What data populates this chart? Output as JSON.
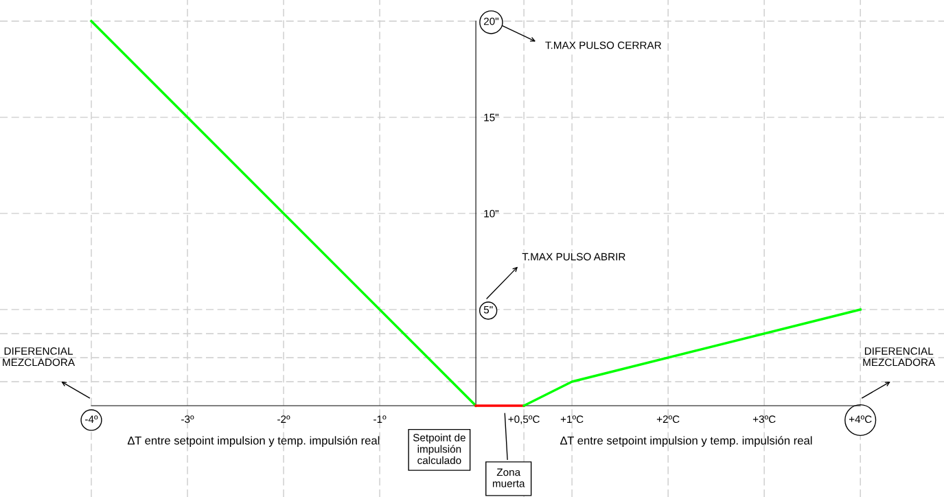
{
  "chart_data": {
    "type": "line",
    "xlabel": "∆T entre setpoint impulsion y temp. impulsión real",
    "series": [
      {
        "color": "#00ff00",
        "x": [
          -4,
          0
        ],
        "values": [
          20,
          0
        ]
      },
      {
        "color": "#ff0000",
        "x": [
          0,
          0.5
        ],
        "values": [
          0,
          0
        ]
      },
      {
        "color": "#00ff00",
        "x": [
          0.5,
          1,
          4
        ],
        "values": [
          0,
          1.25,
          5
        ]
      }
    ],
    "xlim": [
      -4.95,
      4.87
    ],
    "ylim": [
      -4.75,
      21.1
    ],
    "xticks": [
      {
        "value": -4,
        "label": "-4º"
      },
      {
        "value": -3,
        "label": "-3º"
      },
      {
        "value": -2,
        "label": "-2º"
      },
      {
        "value": -1,
        "label": "-1º"
      },
      {
        "value": 0.5,
        "label": "+0,5ºC"
      },
      {
        "value": 1,
        "label": "+1ºC"
      },
      {
        "value": 2,
        "label": "+2ºC"
      },
      {
        "value": 3,
        "label": "+3ºC"
      },
      {
        "value": 4,
        "label": "+4ºC"
      }
    ],
    "yticks": [
      {
        "value": 1.25,
        "label": null
      },
      {
        "value": 2.5,
        "label": null
      },
      {
        "value": 3.75,
        "label": null
      },
      {
        "value": 5,
        "label": "5\""
      },
      {
        "value": 10,
        "label": "10\""
      },
      {
        "value": 15,
        "label": "15\""
      },
      {
        "value": 20,
        "label": "20\""
      }
    ],
    "grid": true,
    "marker": "none",
    "line_style": "solid",
    "annotations": [
      "T.MAX PULSO CERRAR",
      "T.MAX PULSO ABRIR",
      "DIFERENCIAL\nMEZCLADORA",
      "DIFERENCIAL\nMEZCLADORA",
      "∆T entre setpoint impulsion y temp. impulsión real",
      "Setpoint de\nimpulsión\ncalculado",
      "Zona\nmuerta"
    ]
  }
}
